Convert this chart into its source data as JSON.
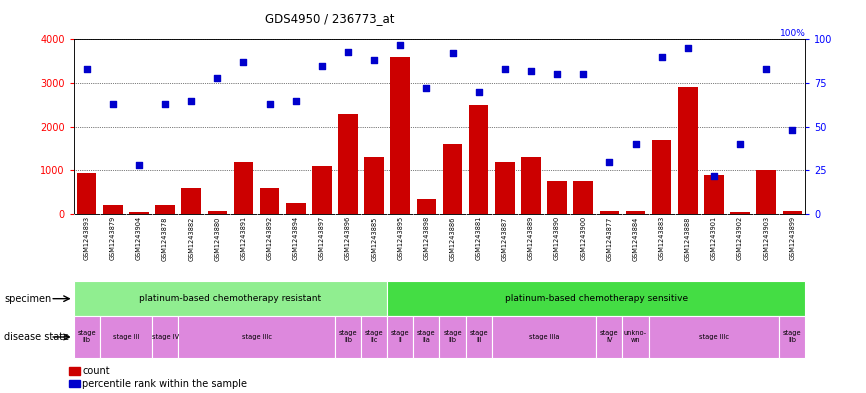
{
  "title": "GDS4950 / 236773_at",
  "samples": [
    "GSM1243893",
    "GSM1243879",
    "GSM1243904",
    "GSM1243878",
    "GSM1243882",
    "GSM1243880",
    "GSM1243891",
    "GSM1243892",
    "GSM1243894",
    "GSM1243897",
    "GSM1243896",
    "GSM1243885",
    "GSM1243895",
    "GSM1243898",
    "GSM1243886",
    "GSM1243881",
    "GSM1243887",
    "GSM1243889",
    "GSM1243890",
    "GSM1243900",
    "GSM1243877",
    "GSM1243884",
    "GSM1243883",
    "GSM1243888",
    "GSM1243901",
    "GSM1243902",
    "GSM1243903",
    "GSM1243899"
  ],
  "counts": [
    950,
    200,
    50,
    200,
    600,
    70,
    1200,
    600,
    250,
    1100,
    2300,
    1300,
    3600,
    350,
    1600,
    2500,
    1200,
    1300,
    750,
    750,
    80,
    80,
    1700,
    2900,
    900,
    60,
    1000,
    80
  ],
  "percentiles": [
    83,
    63,
    28,
    63,
    65,
    78,
    87,
    63,
    65,
    85,
    93,
    88,
    97,
    72,
    92,
    70,
    83,
    82,
    80,
    80,
    30,
    40,
    90,
    95,
    22,
    40,
    83,
    48
  ],
  "specimen_groups": [
    {
      "label": "platinum-based chemotherapy resistant",
      "start": 0,
      "end": 12,
      "color": "#90ee90"
    },
    {
      "label": "platinum-based chemotherapy sensitive",
      "start": 12,
      "end": 28,
      "color": "#44dd44"
    }
  ],
  "disease_stages": [
    {
      "label": "stage\nIIb",
      "start": 0,
      "end": 1
    },
    {
      "label": "stage III",
      "start": 1,
      "end": 3
    },
    {
      "label": "stage IV",
      "start": 3,
      "end": 4
    },
    {
      "label": "stage IIIc",
      "start": 4,
      "end": 10
    },
    {
      "label": "stage\nIIb",
      "start": 10,
      "end": 11
    },
    {
      "label": "stage\nIIc",
      "start": 11,
      "end": 12
    },
    {
      "label": "stage\nII",
      "start": 12,
      "end": 13
    },
    {
      "label": "stage\nIIa",
      "start": 13,
      "end": 14
    },
    {
      "label": "stage\nIIb",
      "start": 14,
      "end": 15
    },
    {
      "label": "stage\nIII",
      "start": 15,
      "end": 16
    },
    {
      "label": "stage IIIa",
      "start": 16,
      "end": 20
    },
    {
      "label": "stage\nIV",
      "start": 20,
      "end": 21
    },
    {
      "label": "unkno-\nwn",
      "start": 21,
      "end": 22
    },
    {
      "label": "stage IIIc",
      "start": 22,
      "end": 27
    },
    {
      "label": "stage\nIIb",
      "start": 27,
      "end": 28
    }
  ],
  "disease_stage_color": "#dd88dd",
  "bar_color": "#cc0000",
  "dot_color": "#0000cc",
  "ylim_left": [
    0,
    4000
  ],
  "ylim_right": [
    0,
    100
  ],
  "yticks_left": [
    0,
    1000,
    2000,
    3000,
    4000
  ],
  "yticks_right": [
    0,
    25,
    50,
    75,
    100
  ],
  "bg_color": "#ffffff",
  "xtick_bg_color": "#cccccc",
  "specimen_label": "specimen",
  "disease_label": "disease state",
  "legend_count": "count",
  "legend_percentile": "percentile rank within the sample"
}
